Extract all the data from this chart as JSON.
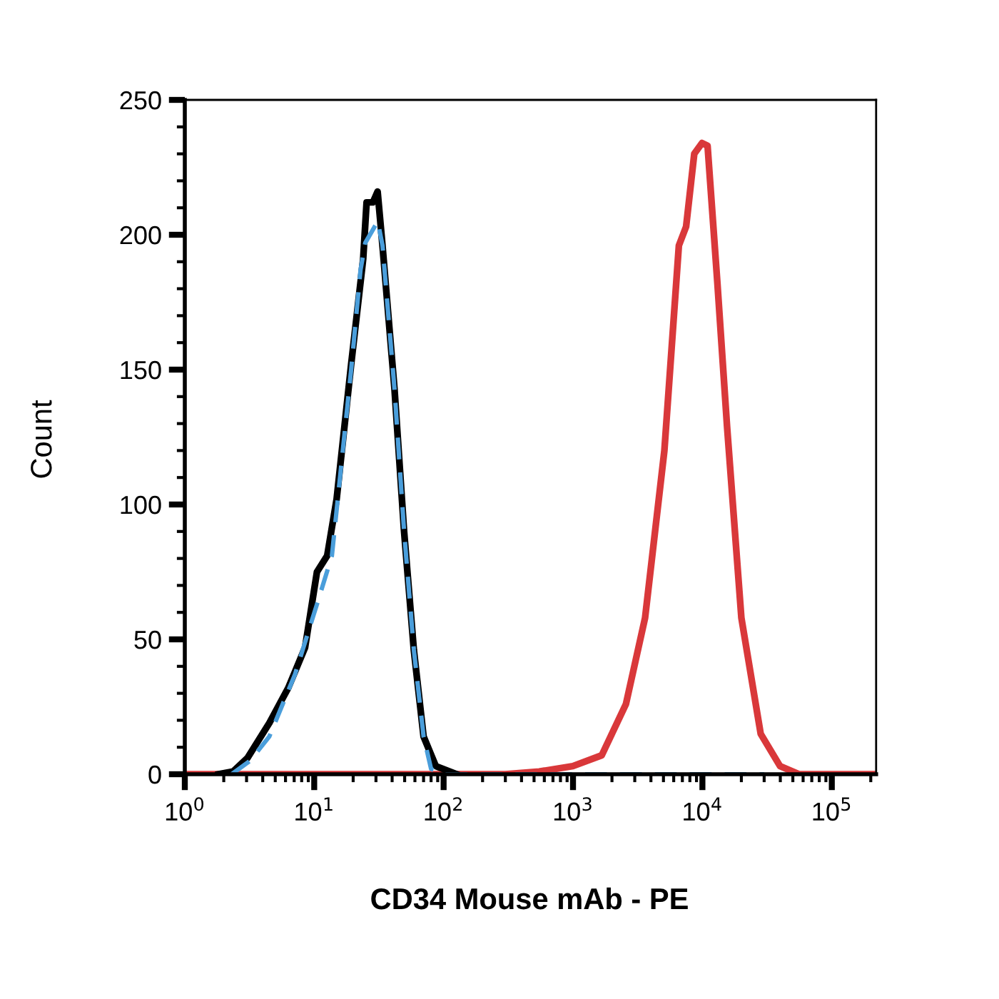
{
  "chart_data": {
    "type": "line",
    "xlabel": "CD34 Mouse mAb - PE",
    "ylabel": "Count",
    "log": "x",
    "xlim": [
      1,
      220000
    ],
    "ylim": [
      0,
      250
    ],
    "xticks": [
      {
        "value": 1,
        "label": "10$^{0}$"
      },
      {
        "value": 10,
        "label": "10$^{1}$"
      },
      {
        "value": 100,
        "label": "10$^{2}$"
      },
      {
        "value": 1000,
        "label": "10$^{3}$"
      },
      {
        "value": 10000,
        "label": "10$^{4}$"
      },
      {
        "value": 100000,
        "label": "10$^{5}$"
      }
    ],
    "yticks": [
      0,
      50,
      100,
      150,
      200,
      250
    ],
    "grid": false,
    "legend": false,
    "marker": "none",
    "series": [
      {
        "color": "#d9383a",
        "line_style": "solid",
        "x": [
          1,
          300,
          548,
          997,
          1667,
          2564,
          3606,
          5083,
          6577,
          7480,
          8650,
          9930,
          10960,
          13060,
          15500,
          20000,
          28200,
          39800,
          56000,
          220000
        ],
        "values": [
          0,
          0,
          1,
          3,
          7,
          26,
          58,
          120,
          196,
          203,
          230,
          234,
          233,
          182,
          129,
          58,
          15,
          3,
          0,
          0
        ]
      },
      {
        "color": "#000000",
        "line_style": "solid",
        "x": [
          1.83,
          2.36,
          3.05,
          4.5,
          6.3,
          8.5,
          10.5,
          12.6,
          14.9,
          19.3,
          23.9,
          25.4,
          28.4,
          30.9,
          33.7,
          41.7,
          49.5,
          58.9,
          70,
          87,
          126
        ],
        "values": [
          0,
          1,
          6,
          19,
          32,
          47,
          75,
          81,
          102,
          152,
          191,
          212,
          212,
          216,
          196,
          143,
          90,
          46,
          14,
          3,
          0
        ]
      },
      {
        "color": "#4a9edb",
        "line_style": "dashed",
        "x": [
          2.3,
          3.2,
          4.5,
          7.1,
          10.5,
          13.7,
          19.3,
          22.8,
          24.8,
          31,
          33.7,
          41.7,
          49.5,
          58.9,
          70,
          80,
          100,
          30000
        ],
        "values": [
          0,
          5,
          14,
          37,
          63,
          81,
          150,
          187,
          197,
          205,
          196,
          143,
          90,
          46,
          14,
          2,
          0,
          0
        ]
      }
    ]
  }
}
